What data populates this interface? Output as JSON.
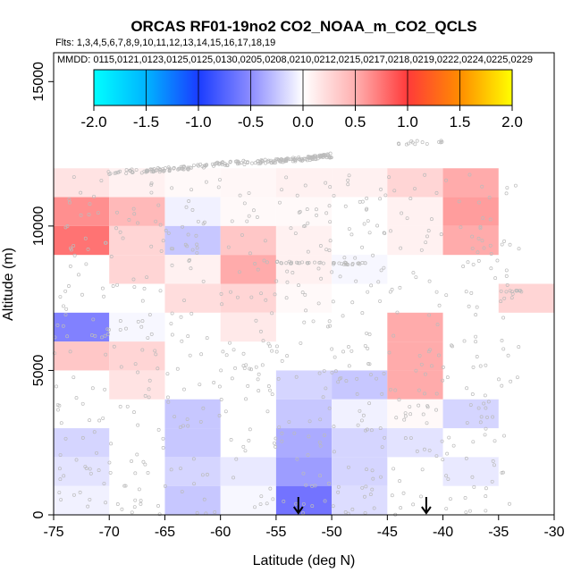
{
  "chart_data": {
    "type": "heatmap",
    "title": "ORCAS RF01-19no2 CO2_NOAA_m_CO2_QCLS",
    "flights_text": "Flts: 1,3,4,5,6,7,8,9,10,11,12,13,14,15,16,17,18,19",
    "dates_text": "MMDD: 0115,0121,0123,0125,0125,0130,0205,0208,0210,0212,0215,0217,0218,0219,0222,0224,0225,0229",
    "xlabel": "Latitude (deg N)",
    "ylabel": "Altitude (m)",
    "xlim": [
      -75,
      -30
    ],
    "ylim": [
      0,
      16000
    ],
    "x_ticks": [
      "-75",
      "-70",
      "-65",
      "-60",
      "-55",
      "-50",
      "-45",
      "-40",
      "-35",
      "-30"
    ],
    "y_ticks": [
      "0",
      "5000",
      "10000",
      "15000"
    ],
    "colorbar": {
      "range": [
        -2,
        2
      ],
      "tick_labels": [
        "-2.0",
        "-1.5",
        "-1.0",
        "-0.5",
        "0.0",
        "0.5",
        "1.0",
        "1.5",
        "2.0"
      ]
    },
    "bin_width_deg": 5,
    "bin_height_m": 1000,
    "cells": [
      {
        "lat": -75,
        "alt": 11000,
        "value": 0.1
      },
      {
        "lat": -70,
        "alt": 11000,
        "value": 0.05
      },
      {
        "lat": -65,
        "alt": 11000,
        "value": 0.02
      },
      {
        "lat": -60,
        "alt": 11000,
        "value": 0.03
      },
      {
        "lat": -55,
        "alt": 11000,
        "value": 0.05
      },
      {
        "lat": -50,
        "alt": 11000,
        "value": 0.05
      },
      {
        "lat": -45,
        "alt": 11000,
        "value": 0.15
      },
      {
        "lat": -40,
        "alt": 11000,
        "value": 0.3
      },
      {
        "lat": -75,
        "alt": 10000,
        "value": 0.4
      },
      {
        "lat": -70,
        "alt": 10000,
        "value": 0.25
      },
      {
        "lat": -65,
        "alt": 10000,
        "value": -0.05
      },
      {
        "lat": -60,
        "alt": 10000,
        "value": 0.02
      },
      {
        "lat": -55,
        "alt": 10000,
        "value": 0.02
      },
      {
        "lat": -45,
        "alt": 10000,
        "value": 0.05
      },
      {
        "lat": -40,
        "alt": 10000,
        "value": 0.35
      },
      {
        "lat": -75,
        "alt": 9000,
        "value": 0.7
      },
      {
        "lat": -70,
        "alt": 9000,
        "value": 0.15
      },
      {
        "lat": -65,
        "alt": 9000,
        "value": -0.2
      },
      {
        "lat": -60,
        "alt": 9000,
        "value": 0.2
      },
      {
        "lat": -55,
        "alt": 9000,
        "value": 0.05
      },
      {
        "lat": -45,
        "alt": 9000,
        "value": 0.05
      },
      {
        "lat": -40,
        "alt": 9000,
        "value": 0.3
      },
      {
        "lat": -70,
        "alt": 8000,
        "value": 0.15
      },
      {
        "lat": -65,
        "alt": 8000,
        "value": 0.05
      },
      {
        "lat": -60,
        "alt": 8000,
        "value": 0.3
      },
      {
        "lat": -55,
        "alt": 8000,
        "value": 0.05
      },
      {
        "lat": -50,
        "alt": 8000,
        "value": -0.03
      },
      {
        "lat": -65,
        "alt": 7000,
        "value": 0.12
      },
      {
        "lat": -60,
        "alt": 7000,
        "value": 0.15
      },
      {
        "lat": -55,
        "alt": 7000,
        "value": 0.02
      },
      {
        "lat": -35,
        "alt": 7000,
        "value": 0.15
      },
      {
        "lat": -75,
        "alt": 6000,
        "value": -0.45
      },
      {
        "lat": -70,
        "alt": 6000,
        "value": -0.03
      },
      {
        "lat": -60,
        "alt": 6000,
        "value": 0.08
      },
      {
        "lat": -45,
        "alt": 6000,
        "value": 0.3
      },
      {
        "lat": -75,
        "alt": 5000,
        "value": 0.2
      },
      {
        "lat": -70,
        "alt": 5000,
        "value": 0.15
      },
      {
        "lat": -45,
        "alt": 5000,
        "value": 0.3
      },
      {
        "lat": -70,
        "alt": 4000,
        "value": 0.1
      },
      {
        "lat": -55,
        "alt": 4000,
        "value": -0.15
      },
      {
        "lat": -50,
        "alt": 4000,
        "value": -0.2
      },
      {
        "lat": -45,
        "alt": 4000,
        "value": 0.3
      },
      {
        "lat": -65,
        "alt": 3000,
        "value": -0.2
      },
      {
        "lat": -55,
        "alt": 3000,
        "value": -0.2
      },
      {
        "lat": -50,
        "alt": 3000,
        "value": -0.05
      },
      {
        "lat": -45,
        "alt": 3000,
        "value": 0.02
      },
      {
        "lat": -40,
        "alt": 3000,
        "value": -0.15
      },
      {
        "lat": -75,
        "alt": 2000,
        "value": -0.15
      },
      {
        "lat": -65,
        "alt": 2000,
        "value": -0.2
      },
      {
        "lat": -55,
        "alt": 2000,
        "value": -0.3
      },
      {
        "lat": -50,
        "alt": 2000,
        "value": -0.15
      },
      {
        "lat": -45,
        "alt": 2000,
        "value": -0.1
      },
      {
        "lat": -75,
        "alt": 1000,
        "value": -0.1
      },
      {
        "lat": -65,
        "alt": 1000,
        "value": -0.15
      },
      {
        "lat": -60,
        "alt": 1000,
        "value": -0.08
      },
      {
        "lat": -55,
        "alt": 1000,
        "value": -0.35
      },
      {
        "lat": -50,
        "alt": 1000,
        "value": -0.15
      },
      {
        "lat": -40,
        "alt": 1000,
        "value": -0.08
      },
      {
        "lat": -75,
        "alt": 0,
        "value": -0.05
      },
      {
        "lat": -65,
        "alt": 0,
        "value": -0.2
      },
      {
        "lat": -60,
        "alt": 0,
        "value": -0.03
      },
      {
        "lat": -55,
        "alt": 0,
        "value": -0.5
      },
      {
        "lat": -50,
        "alt": 0,
        "value": -0.12
      }
    ],
    "arrows_lat": [
      -53,
      -41.5
    ],
    "sample_points": {
      "color": "#bbbbbb",
      "flight_track_high": [
        {
          "lat": -70,
          "alt": 11850
        },
        {
          "lat": -65,
          "alt": 11950
        },
        {
          "lat": -60,
          "alt": 12150
        },
        {
          "lat": -55,
          "alt": 12250
        },
        {
          "lat": -52,
          "alt": 12350
        },
        {
          "lat": -50,
          "alt": 12450
        }
      ],
      "flight_track_mid": [
        {
          "lat": -55,
          "alt": 8750
        },
        {
          "lat": -50,
          "alt": 8700
        },
        {
          "lat": -47,
          "alt": 8700
        }
      ],
      "flight_track_low": [
        {
          "lat": -35,
          "alt": 7750
        },
        {
          "lat": -33,
          "alt": 7750
        }
      ]
    }
  }
}
